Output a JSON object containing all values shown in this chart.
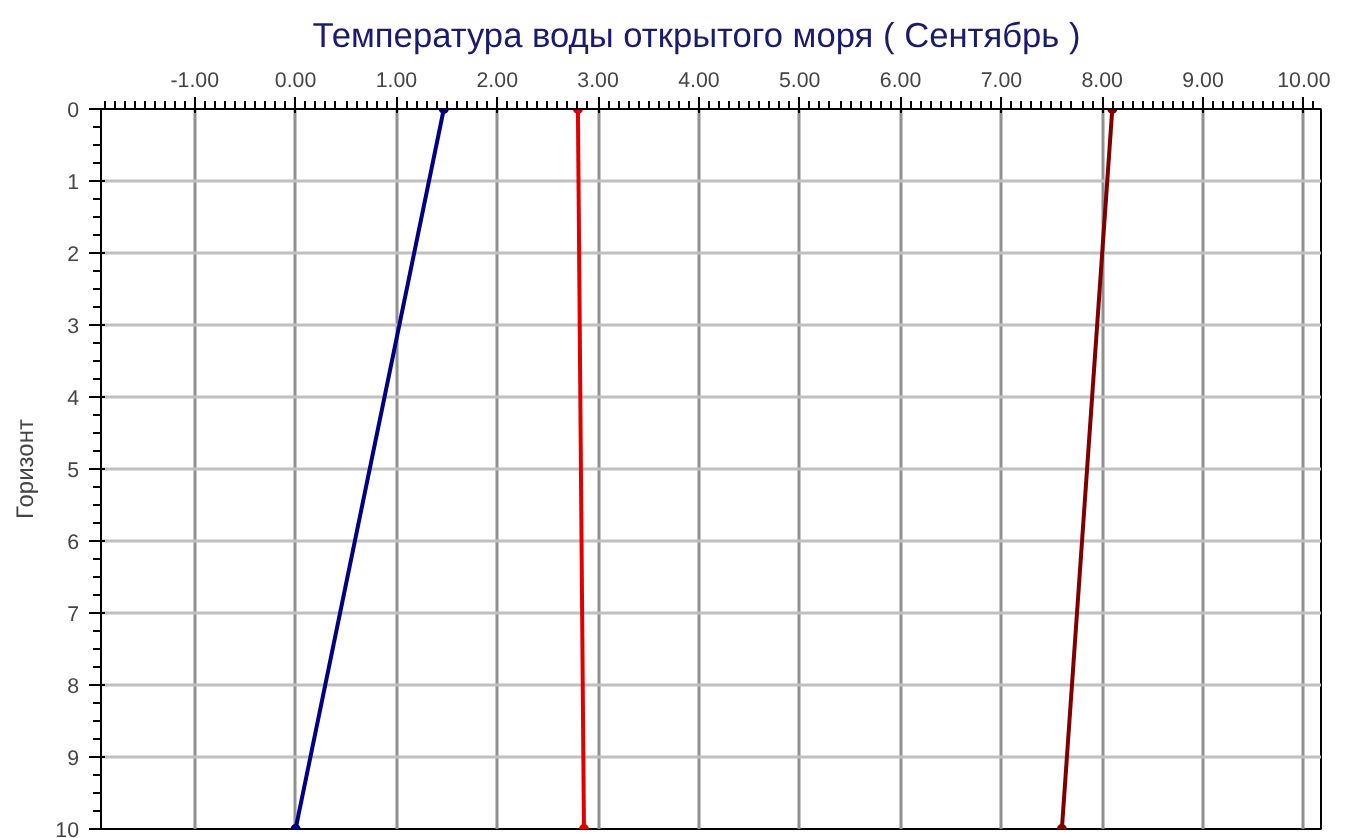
{
  "chart_data": {
    "type": "line",
    "title": "Температура воды открытого моря    ( Сентябрь )",
    "ylabel": "Горизонт",
    "xlim": [
      -1.93,
      10.17
    ],
    "ylim": [
      10,
      0
    ],
    "xticks": [
      {
        "value": -1,
        "label": "-1.00"
      },
      {
        "value": 0,
        "label": "0.00"
      },
      {
        "value": 1,
        "label": "1.00"
      },
      {
        "value": 2,
        "label": "2.00"
      },
      {
        "value": 3,
        "label": "3.00"
      },
      {
        "value": 4,
        "label": "4.00"
      },
      {
        "value": 5,
        "label": "5.00"
      },
      {
        "value": 6,
        "label": "6.00"
      },
      {
        "value": 7,
        "label": "7.00"
      },
      {
        "value": 8,
        "label": "8.00"
      },
      {
        "value": 9,
        "label": "9.00"
      },
      {
        "value": 10,
        "label": "10.00"
      }
    ],
    "yticks": [
      0,
      1,
      2,
      3,
      4,
      5,
      6,
      7,
      8,
      9,
      10
    ],
    "grid": true,
    "marker": "circle",
    "line_style": "solid",
    "series": [
      {
        "color": "#000080",
        "x": [
          1.47,
          0.0
        ],
        "values": [
          0,
          10
        ]
      },
      {
        "color": "#e00000",
        "x": [
          2.8,
          2.86
        ],
        "values": [
          0,
          10
        ]
      },
      {
        "color": "#800000",
        "x": [
          8.1,
          7.6
        ],
        "values": [
          0,
          10
        ]
      }
    ]
  }
}
